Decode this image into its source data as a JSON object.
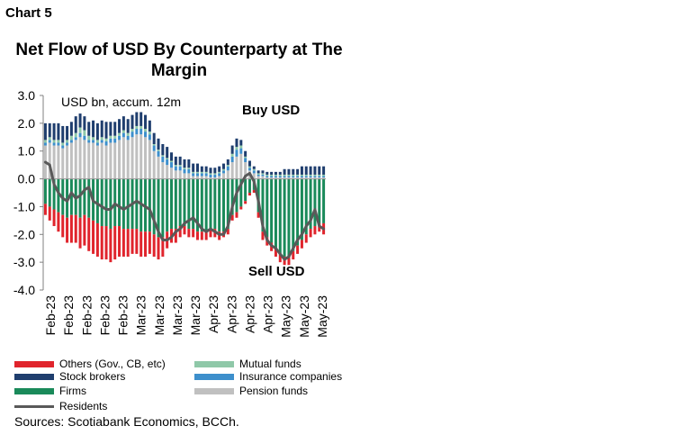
{
  "header": {
    "chart_label": "Chart 5"
  },
  "colors": {
    "others": "#e0242c",
    "stock_brokers": "#1f3e6e",
    "firms": "#1a8a5a",
    "residents": "#595959",
    "mutual_funds": "#8fc8a8",
    "insurance_companies": "#3d8fcc",
    "pension_funds": "#c0c0c0"
  },
  "chart_data": {
    "type": "bar",
    "stacked": true,
    "title": "Net Flow of USD By Counterparty at The Margin",
    "unit_label": "USD bn, accum. 12m",
    "annotations": {
      "buy": "Buy USD",
      "sell": "Sell USD"
    },
    "ylim": [
      -4.0,
      3.0
    ],
    "yticks": [
      "3.0",
      "2.0",
      "1.0",
      "0.0",
      "-1.0",
      "-2.0",
      "-3.0",
      "-4.0"
    ],
    "x_tick_labels": [
      "Feb-23",
      "Feb-23",
      "Feb-23",
      "Feb-23",
      "Feb-23",
      "Mar-23",
      "Mar-23",
      "Mar-23",
      "Mar-23",
      "Apr-23",
      "Apr-23",
      "Apr-23",
      "Apr-23",
      "May-23",
      "May-23",
      "May-23"
    ],
    "positive_series": [
      {
        "key": "pension_funds",
        "name": "Pension funds",
        "values": [
          1.2,
          1.3,
          1.2,
          1.2,
          1.1,
          1.2,
          1.3,
          1.4,
          1.5,
          1.4,
          1.3,
          1.3,
          1.2,
          1.3,
          1.2,
          1.3,
          1.3,
          1.4,
          1.5,
          1.4,
          1.5,
          1.6,
          1.6,
          1.5,
          1.4,
          1.0,
          0.8,
          0.6,
          0.5,
          0.4,
          0.3,
          0.3,
          0.2,
          0.2,
          0.1,
          0.1,
          0.1,
          0.1,
          0.05,
          0.05,
          0.1,
          0.2,
          0.3,
          0.6,
          0.8,
          0.9,
          0.6,
          0.3,
          0.2,
          0.1,
          0.1,
          0.05,
          0.05,
          0.05,
          0.05,
          0.05,
          0.05,
          0.05,
          0.05,
          0.05,
          0.05,
          0.05,
          0.05,
          0.05,
          0.05
        ]
      },
      {
        "key": "insurance_companies",
        "name": "Insurance companies",
        "values": [
          0.1,
          0.1,
          0.1,
          0.1,
          0.1,
          0.1,
          0.1,
          0.1,
          0.15,
          0.15,
          0.1,
          0.1,
          0.1,
          0.1,
          0.15,
          0.15,
          0.15,
          0.15,
          0.15,
          0.15,
          0.2,
          0.2,
          0.2,
          0.2,
          0.2,
          0.2,
          0.2,
          0.2,
          0.2,
          0.2,
          0.15,
          0.15,
          0.15,
          0.15,
          0.1,
          0.1,
          0.1,
          0.1,
          0.1,
          0.1,
          0.1,
          0.1,
          0.15,
          0.2,
          0.25,
          0.2,
          0.15,
          0.1,
          0.1,
          0.05,
          0.05,
          0.05,
          0.05,
          0.05,
          0.05,
          0.05,
          0.05,
          0.05,
          0.05,
          0.05,
          0.05,
          0.05,
          0.05,
          0.05,
          0.05
        ]
      },
      {
        "key": "mutual_funds",
        "name": "Mutual funds",
        "values": [
          0.1,
          0.1,
          0.1,
          0.1,
          0.1,
          0.1,
          0.15,
          0.15,
          0.2,
          0.2,
          0.15,
          0.1,
          0.1,
          0.1,
          0.1,
          0.1,
          0.1,
          0.1,
          0.1,
          0.1,
          0.1,
          0.1,
          0.1,
          0.1,
          0.1,
          0.05,
          0.05,
          0.05,
          0.05,
          0.05,
          0.05,
          0.05,
          0.05,
          0.05,
          0.05,
          0.05,
          0.05,
          0.05,
          0.05,
          0.05,
          0.05,
          0.05,
          0.05,
          0.1,
          0.1,
          0.1,
          0.05,
          0.05,
          0.05,
          0.05,
          0.05,
          0.05,
          0.05,
          0.05,
          0.05,
          0.05,
          0.05,
          0.05,
          0.05,
          0.05,
          0.05,
          0.05,
          0.05,
          0.05,
          0.05
        ]
      },
      {
        "key": "stock_brokers",
        "name": "Stock brokers",
        "values": [
          0.6,
          0.5,
          0.6,
          0.6,
          0.6,
          0.5,
          0.5,
          0.6,
          0.5,
          0.5,
          0.5,
          0.6,
          0.6,
          0.6,
          0.6,
          0.5,
          0.5,
          0.5,
          0.5,
          0.5,
          0.5,
          0.5,
          0.5,
          0.5,
          0.4,
          0.4,
          0.4,
          0.4,
          0.4,
          0.3,
          0.3,
          0.3,
          0.3,
          0.3,
          0.3,
          0.3,
          0.2,
          0.2,
          0.2,
          0.2,
          0.2,
          0.2,
          0.2,
          0.3,
          0.3,
          0.2,
          0.2,
          0.2,
          0.1,
          0.1,
          0.1,
          0.1,
          0.1,
          0.1,
          0.1,
          0.2,
          0.2,
          0.2,
          0.2,
          0.3,
          0.3,
          0.3,
          0.3,
          0.3,
          0.3
        ]
      }
    ],
    "negative_series": [
      {
        "key": "firms",
        "name": "Firms",
        "values": [
          -0.9,
          -1.0,
          -1.1,
          -1.2,
          -1.3,
          -1.4,
          -1.3,
          -1.3,
          -1.4,
          -1.3,
          -1.4,
          -1.5,
          -1.6,
          -1.7,
          -1.7,
          -1.8,
          -1.7,
          -1.7,
          -1.8,
          -1.8,
          -1.8,
          -1.8,
          -1.9,
          -1.9,
          -1.9,
          -2.0,
          -2.1,
          -2.1,
          -1.9,
          -1.8,
          -1.8,
          -1.7,
          -1.7,
          -1.8,
          -1.8,
          -1.9,
          -1.9,
          -1.9,
          -1.8,
          -1.8,
          -1.9,
          -1.9,
          -1.8,
          -1.3,
          -1.2,
          -1.0,
          -0.8,
          -0.5,
          -0.4,
          -1.2,
          -1.9,
          -2.1,
          -2.3,
          -2.5,
          -2.7,
          -2.8,
          -2.8,
          -2.6,
          -2.4,
          -2.2,
          -2.0,
          -1.8,
          -1.7,
          -1.6,
          -1.6
        ]
      },
      {
        "key": "others",
        "name": "Others (Gov., CB, etc)",
        "values": [
          -0.4,
          -0.5,
          -0.6,
          -0.7,
          -0.8,
          -0.9,
          -1.0,
          -1.0,
          -1.1,
          -1.1,
          -1.2,
          -1.2,
          -1.2,
          -1.2,
          -1.2,
          -1.2,
          -1.2,
          -1.1,
          -1.0,
          -1.0,
          -0.9,
          -0.9,
          -0.9,
          -0.9,
          -0.8,
          -0.8,
          -0.8,
          -0.7,
          -0.6,
          -0.5,
          -0.5,
          -0.4,
          -0.3,
          -0.3,
          -0.3,
          -0.3,
          -0.3,
          -0.3,
          -0.3,
          -0.3,
          -0.3,
          -0.2,
          -0.2,
          -0.2,
          -0.2,
          -0.1,
          -0.1,
          -0.1,
          -0.1,
          -0.2,
          -0.3,
          -0.3,
          -0.3,
          -0.3,
          -0.3,
          -0.3,
          -0.3,
          -0.3,
          -0.3,
          -0.3,
          -0.3,
          -0.3,
          -0.3,
          -0.3,
          -0.4
        ]
      }
    ],
    "line_series": {
      "key": "residents",
      "name": "Residents",
      "values": [
        0.6,
        0.5,
        -0.2,
        -0.5,
        -0.7,
        -0.8,
        -0.5,
        -0.7,
        -0.6,
        -0.4,
        -0.3,
        -0.8,
        -0.9,
        -1.0,
        -1.1,
        -1.1,
        -0.9,
        -1.0,
        -1.1,
        -1.0,
        -0.9,
        -0.8,
        -0.9,
        -1.0,
        -1.1,
        -1.5,
        -1.9,
        -2.2,
        -2.2,
        -2.1,
        -1.9,
        -1.8,
        -1.6,
        -1.5,
        -1.4,
        -1.6,
        -1.8,
        -1.9,
        -1.8,
        -1.9,
        -2.0,
        -2.0,
        -1.7,
        -1.0,
        -0.5,
        -0.2,
        0.1,
        0.2,
        -0.1,
        -0.8,
        -1.7,
        -2.2,
        -2.4,
        -2.5,
        -2.7,
        -2.9,
        -2.8,
        -2.5,
        -2.2,
        -2.0,
        -1.7,
        -1.5,
        -1.1,
        -1.7,
        -1.8
      ]
    },
    "legend": [
      "Others (Gov., CB, etc)",
      "Mutual funds",
      "Stock brokers",
      "Insurance companies",
      "Firms",
      "Pension funds",
      "Residents"
    ]
  },
  "footer": {
    "source": "Sources: Scotiabank Economics, BCCh."
  }
}
